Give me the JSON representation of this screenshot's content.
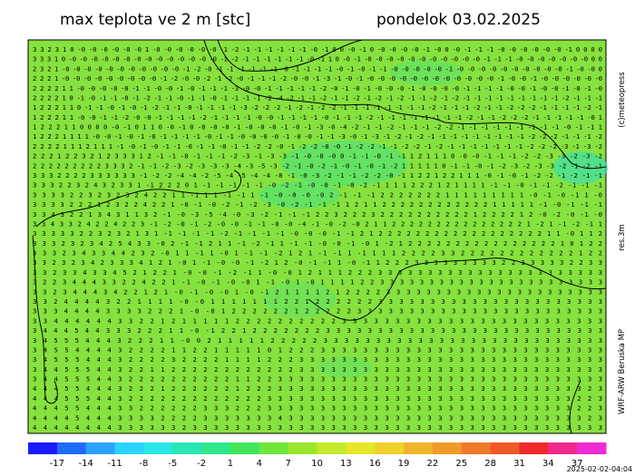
{
  "header": {
    "title": "max teplota ve 2 m [stc]",
    "date": "pondelok 03.02.2025"
  },
  "side_labels": {
    "copyright": "(c)meteopress",
    "resolution": "res.3m",
    "model": "WRF-ARW Beruska MP"
  },
  "timestamp": "2025-02-02-04:04",
  "colorbar": {
    "labels": [
      "-17",
      "-14",
      "-11",
      "-8",
      "-5",
      "-2",
      "1",
      "4",
      "7",
      "10",
      "13",
      "16",
      "19",
      "22",
      "25",
      "28",
      "31",
      "34",
      "37"
    ],
    "colors": [
      "#1a1aff",
      "#1f6bff",
      "#2aa3ff",
      "#2ad4ff",
      "#2ae6e6",
      "#2ae6b4",
      "#2ee68c",
      "#3fe65a",
      "#6ee63a",
      "#9be62a",
      "#c4ea2a",
      "#e6e62a",
      "#f0d22a",
      "#f0b42a",
      "#f09a2a",
      "#f07a2a",
      "#f05a2a",
      "#f02a2a",
      "#f02a8c",
      "#f02ad2"
    ]
  },
  "grid_rows": [
    "3 3 2 3 1 0 -0 -0 -0 -0 -0 -0 1 -0 -0 -0 -0 -0 -0 -1 -2 -1 -1 -1 -1 -1 -1 -0 -1 0 0 -0 -1 0 -0 -0 -0 -0 -1 -0 0 -0 -1 -1 -1 -0 -0 -0 -0 -0 -0 -1 0 0 0 0",
    "3 3 3 1 0 -0 -0 -0 -0 -0 -0 -0 -0 -0 -0 -0 -0 -0 -0 -1 -2 -1 -1 -1 -1 -1 -1 -0 -1 1 0 -0 -1 -0 -0 -0 -0 -0 -0 -0 -0 -0 -0 -0 -1 -1 -1 -0 -0 -0 -0 -0 -0 -0 0 0",
    "2 3 2 1 -0 -0 -0 -0 -0 -0 -0 -0 -0 -0 -0 -1 -2 -0 -1 -1 -1 -1 -1 -1 -0 -1 -1 -1 -1 -0 -1 -0 -1 -1 -0 -0 -0 -0 -0 -1 -0 -0 -0 -0 -0 -0 -0 -0 -0 -0 -1 -0 -0 0",
    "2 2 2 1 -0 -0 -0 -0 -0 -0 -0 -0 -0 -1 -2 -0 -0 -2 -1 -2 -0 -1 -1 -1 -2 -0 -0 -1 -3 -1 -0 -1 -0 -0 -0 -0 -0 -0 -0 -0 -0 -0 -0 -0 -1 -0 -0 -1 -0 -0 -0 -0 -0 -0",
    "2 2 2 2 1 1 -0 -0 -0 -0 -0 -1 -1 -0 -0 -1 -0 -1 -1 -1 -3 -0 -0 -1 -1 -1 -1 -1 -2 -0 -1 -0 -1 -0 -0 -0 -1 -0 -0 -0 -0 -1 -1 -1 -1 -0 -0 -1 -0 -0 -1 -0 -1 -0",
    "2 2 2 2 1 0 -1 -0 -1 -1 -0 -1 -2 -1 -1 -0 -1 -1 -0 -1 -1 -1 -1 -2 -4 -2 -1 -1 -2 -1 -1 -2 -1 -2 -1 -2 -1 -1 -2 -1 -2 -1 -1 -1 -1 -1 -1 -1 -1 -1 -2 -1 -1 -1",
    "1 2 2 2 1 1 0 -1 -1 -0 -1 -0 -1 -2 -1 -1 -0 -1 -1 -1 -1 -3 -2 -2 -2 -1 -2 -1 -2 -2 -1 -1 -1 -1 -1 -1 -1 -1 -2 -1 -1 -1 -2 -1 -1 -2 -2 -2 -1 -1 -1 -1 -2 -1",
    "1 2 2 2 1 1 -0 -0 -1 -1 -2 -0 -0 -1 -1 -1 -1 -2 -1 -1 -1 -1 -0 -0 -1 -1 -1 -1 -0 -1 -1 -1 -2 -1 -1 -1 -1 -1 -1 -1 -1 -2 -1 -1 -2 -2 -2 -1 -1 -1 -1 -1 -0 1",
    "1 2 2 2 1 1 0 0 0 0 -0 -1 0 1 1 0 -0 -1 0 -0 -0 -0 -1 -0 -0 -0 -1 -0 -1 -3 -0 -4 -2 -1 -1 -2 -1 -1 -1 -2 -2 -1 -1 -1 -1 -1 -1 -1 -1 -1 -0 -1 -1 1",
    "1 2 2 2 1 1 1 1 -0 -0 -1 -0 -1 -0 -1 -1 -1 -1 -0 -1 -1 -0 -0 -0 -0 -1 -0 -0 -1 -1 -3 -0 -1 -3 -1 -2 -1 -2 -1 -1 -1 -1 -1 -1 -1 -1 -1 -2 -2 -2 -1 -1 -1 -2",
    "2 2 2 2 1 1 1 2 1 1 1 -1 -0 -1 -0 -1 -1 -0 -1 -1 -0 -1 -1 -2 -2 -0 -1 -2 -2 -0 -0 -1 -2 -2 -1 -1 -2 -2 -1 -2 -1 -1 -1 -1 -1 -1 -1 -2 -2 -2 -3 -1 -3 -2",
    "2 2 2 1 2 2 3 2 1 2 3 3 3 1 2 -1 -1 -0 -1 -1 -1 -2 -3 -1 -3 -3 -1 -0 -0 -0 0 -1 -1 -0 -1 -1 1 2 1 1 1 0 -0 -0 -1 -1 -1 -2 -2 -3 -3 -2 -3 -2",
    "2 2 2 2 2 2 2 2 2 3 3 3 2 -1 -1 -2 -3 -2 -3 -3 -3 -4 -3 -5 -3 -2 -1 -0 -2 -1 -0 -1 -0 -1 -2 1 1 1 1 1 0 -1 -1 -0 -1 -2 -3 -2 -3 -3 -2 -1 -2 -1",
    "3 3 3 2 2 2 2 3 3 3 3 3 3 -1 -2 -2 -4 -4 -2 -5 -4 -5 -4 -4 -8 -1 -0 -3 -2 -1 -1 -2 -2 -0 -1 1 2 2 1 2 2 1 1 1 -0 -1 -0 -1 -2 -2 -1 -2 -1 -1",
    "3 3 3 2 2 3 2 4 3 2 3 3 1 -1 2 2 2 0 1 -1 -1 -1 -1 -1 -0 -2 -1 -0 -0 -1 -0 -2 -1 1 1 1 2 2 2 1 2 1 1 1 1 -1 -1 -0 -1 -1 -2 -1 -1 -1",
    "3 3 3 3 2 2 3 2 3 2 3 2 4 2 2 1 1 -1 1 1 -1 -1 1 -1 -0 -0 -0 -0 2 -1 -1 -1 2 2 2 2 2 2 2 1 1 1 1 1 1 1 1 1 -0 -1 -0 -1 1 -0",
    "3 3 3 3 2 2 2 1 2 3 2 2 4 2 2 1 -0 -1 -0 -2 -1 -2 -3 -0 -2 -1 -1 -1 1 2 1 1 2 2 2 2 2 2 2 2 2 2 2 2 1 1 1 1 1 -1 -0 -1 -1 -1",
    "3 3 4 3 2 2 1 3 4 3 1 1 3 2 -1 -0 -3 -5 -4 -0 -3 -2 -1 -1 -1 2 2 3 2 2 2 3 2 2 2 2 2 2 2 2 2 2 1 2 2 2 2 1 2 -0 -2 -0 -1 -0",
    "3 3 4 3 3 2 4 2 2 4 2 2 3 -1 -2 -0 -1 -2 -0 -0 -1 -1 -0 -0 -4 -1 -0 -2 -0 2 1 1 2 2 2 2 2 2 2 2 2 2 2 2 2 2 2 1 -2 1 -1 -2 -1 1",
    "3 3 3 3 3 2 2 3 2 3 2 1 3 1 -1 -1 -1 -1 -2 -1 -1 -1 -1 -0 -0 -0 -1 -1 2 1 2 2 2 2 2 2 2 2 2 2 2 2 2 2 2 2 2 2 1 1 -0 1 1 2",
    "3 3 3 2 3 2 3 4 2 5 4 3 3 -0 2 -1 -1 2 1 1 -1 -2 -1 1 -1 -1 -0 -0 -1 -0 1 -2 1 2 2 2 2 2 2 2 2 2 2 2 2 2 2 2 2 1 0 1 2 2",
    "3 3 3 2 3 4 3 3 4 4 2 3 2 -0 1 1 -1 1 -0 1 -1 -1 -2 1 2 1 -1 -1 1 -1 1 1 1 2 2 2 2 3 3 2 2 2 2 2 2 2 2 2 2 2 2 1 2 2",
    "3 3 2 3 2 3 4 2 3 3 3 4 1 2 1 -0 1 -1 -0 -0 -1 -2 1 2 -0 -1 -1 1 -0 -1 1 2 2 2 3 3 3 3 3 3 3 3 3 2 2 3 3 3 3 3 2 2 3 3",
    "3 3 2 3 3 4 3 3 4 5 2 1 2 2 1 -0 -0 -1 -2 -1 1 -0 -0 1 2 1 1 1 2 2 2 3 3 3 3 3 3 3 3 3 3 3 3 3 3 3 3 3 3 3 3 3 3 3",
    "3 2 2 3 4 4 4 3 3 2 2 4 2 2 1 -1 -0 -1 -0 -0 1 -1 -0 1 -0 1 1 1 1 2 2 3 3 3 3 3 3 3 3 3 3 3 3 3 3 3 3 3 3 3 3 3 3 3",
    "3 3 2 3 4 4 4 3 4 2 2 1 2 1 -0 -1 -0 -0 1 -0 -1 2 1 1 1 1 2 1 2 2 2 2 3 3 3 3 3 3 3 3 3 3 3 3 3 3 3 3 3 3 3 3 3 3",
    "3 3 2 4 4 4 4 3 2 2 1 1 1 1 -0 -0 1 1 1 1 1 1 1 2 2 1 2 2 2 2 2 2 3 3 3 3 3 3 3 3 3 3 3 3 3 3 3 3 3 3 3 3 3 3",
    "3 3 3 4 4 4 4 3 3 3 3 2 2 2 1 -0 -0 1 2 2 2 2 2 2 1 2 2 2 2 2 3 3 3 3 3 3 3 3 3 3 3 3 3 3 3 3 3 3 3 3 3 3 3 3",
    "3 3 4 4 4 4 4 4 3 3 2 2 1 2 1 1 1 1 1 2 2 2 2 2 2 2 2 2 2 3 3 3 3 3 3 3 3 3 3 3 3 3 3 3 3 3 3 3 3 3 3 3 3 3",
    "3 4 4 4 5 4 4 3 3 3 2 2 2 1 1 -0 -1 2 2 1 2 2 2 2 2 2 2 3 3 3 3 3 3 3 3 3 3 3 3 3 3 3 3 3 3 3 3 3 3 3 3 3 3 3",
    "3 4 5 5 5 4 4 4 3 2 2 2 1 1 -0 0 2 1 1 1 1 1 2 2 2 2 2 3 3 3 3 3 3 3 3 3 3 3 3 3 3 3 3 3 3 3 3 3 3 3 3 3 3 3",
    "3 4 5 5 4 4 4 4 3 2 2 2 2 1 1 2 2 1 1 1 1 1 0 1 2 2 2 3 3 3 3 3 3 3 3 3 3 3 3 3 3 3 3 3 3 3 3 3 3 3 3 3 3 3",
    "3 4 5 5 5 4 4 4 3 2 2 2 2 3 2 2 2 2 1 1 1 1 2 2 2 3 3 3 3 3 3 3 3 3 3 3 3 3 3 3 3 3 3 3 3 3 3 3 3 3 3 3 3 3",
    "3 4 4 5 5 5 4 4 3 2 2 1 1 2 2 2 2 2 2 2 2 2 2 2 2 3 3 3 3 3 3 3 3 3 3 3 3 3 3 3 3 3 3 3 3 3 3 3 3 3 3 3 3 3",
    "3 4 4 5 5 5 4 4 3 2 2 2 2 2 2 2 2 2 2 1 1 2 2 3 3 3 3 3 3 3 3 3 3 3 3 3 3 3 3 3 3 3 3 3 3 3 3 3 3 3 3 3 3 3",
    "4 4 4 5 5 4 4 4 3 2 2 2 1 2 2 2 2 2 2 1 2 2 2 3 3 3 3 3 3 3 3 3 3 3 3 3 3 3 3 3 3 3 3 3 3 3 3 3 3 3 3 3 2 3",
    "4 4 4 5 5 5 4 4 3 2 2 2 2 2 2 2 2 2 2 2 2 2 3 3 3 3 3 3 3 3 3 3 3 3 3 3 3 3 3 3 3 3 3 3 3 3 3 3 3 3 3 2 2 3",
    "4 4 4 5 5 4 4 4 3 3 2 2 2 2 2 2 3 3 3 2 2 2 3 3 3 3 3 3 3 3 3 3 3 3 3 3 3 3 3 3 3 3 3 3 3 3 3 3 3 3 3 2 2 3",
    "4 4 4 4 5 4 4 4 3 3 3 3 2 2 2 2 3 3 3 3 3 3 3 4 3 3 3 3 3 3 3 3 3 3 3 3 3 3 3 3 3 3 3 3 3 3 3 3 3 3 3 3 2 3",
    "4 4 4 4 4 4 4 4 3 3 3 3 3 3 2 3 3 3 3 3 3 3 3 3 3 3 3 3 3 3 3 3 3 3 3 3 3 3 3 3 3 3 3 3 3 3 3 3 3 3 3 3 3 3"
  ]
}
